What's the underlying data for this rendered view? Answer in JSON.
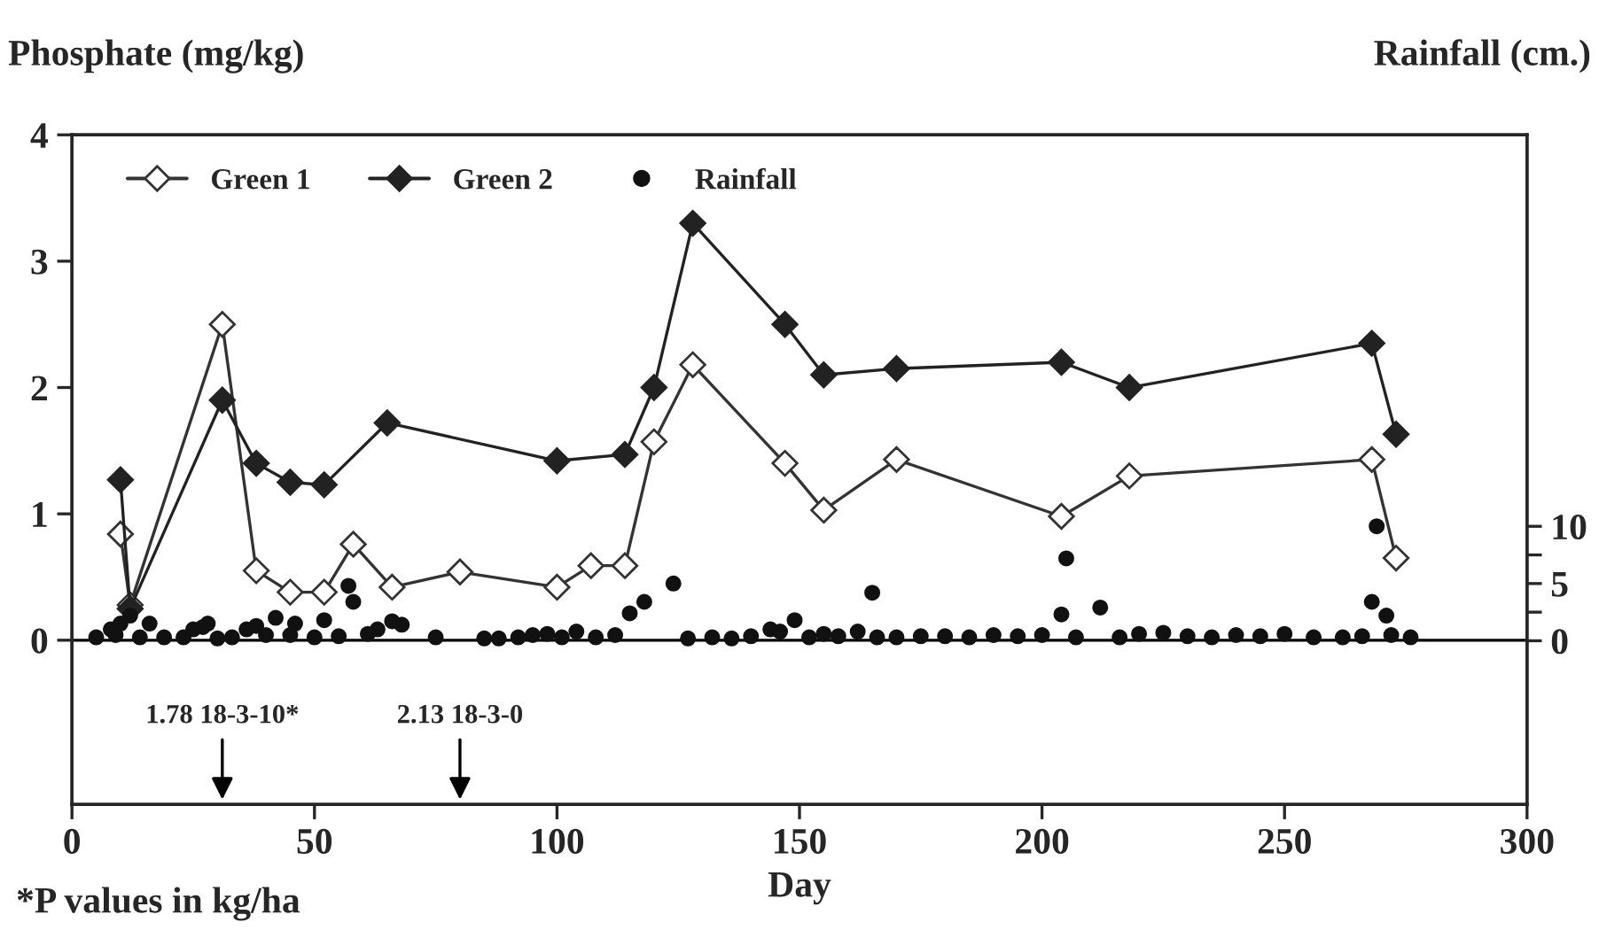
{
  "chart_data": {
    "type": "line",
    "xlabel": "Day",
    "ylabel": "Phosphate (mg/kg)",
    "y2label": "Rainfall (cm.)",
    "xlim": [
      0,
      300
    ],
    "xticks": [
      0,
      50,
      100,
      150,
      200,
      250,
      300
    ],
    "ylim": [
      -1.3,
      4
    ],
    "yticks": [
      0,
      1,
      2,
      3,
      4
    ],
    "y2lim": [
      -14.3,
      44.2
    ],
    "y2ticks": [
      0,
      {
        "value": 2.5,
        "label": null
      },
      5,
      {
        "value": 7.5,
        "label": null
      },
      10
    ],
    "grid": false,
    "legend": "top left",
    "line_style": "solid",
    "ref_lines": [
      {
        "axis": "y",
        "value": 0,
        "label": null,
        "color": "#000000"
      }
    ],
    "series": [
      {
        "name": "Green 1",
        "marker": "diamond",
        "color": "#333333",
        "x": [
          10,
          12,
          31,
          38,
          45,
          52,
          58,
          66,
          80,
          100,
          107,
          114,
          120,
          128,
          147,
          155,
          170,
          204,
          218,
          268,
          273
        ],
        "values": [
          0.84,
          0.28,
          2.5,
          0.55,
          0.38,
          0.38,
          0.76,
          0.42,
          0.54,
          0.42,
          0.59,
          0.59,
          1.57,
          2.18,
          1.4,
          1.03,
          1.43,
          0.98,
          1.3,
          1.43,
          0.65
        ]
      },
      {
        "name": "Green 2",
        "marker": "diamond",
        "color": "#222222",
        "x": [
          10,
          12,
          31,
          38,
          45,
          52,
          65,
          100,
          114,
          120,
          128,
          147,
          155,
          170,
          204,
          218,
          268,
          273
        ],
        "values": [
          1.27,
          0.25,
          1.9,
          1.4,
          1.25,
          1.23,
          1.72,
          1.42,
          1.47,
          2.0,
          3.3,
          2.5,
          2.1,
          2.15,
          2.2,
          2.0,
          2.35,
          1.63
        ]
      },
      {
        "name": "Rainfall",
        "type": "scatter",
        "axis": "y2",
        "marker": "circle",
        "color": "#111111",
        "x": [
          5,
          8,
          9,
          10,
          12,
          14,
          16,
          19,
          23,
          25,
          27,
          28,
          30,
          33,
          36,
          38,
          40,
          42,
          45,
          46,
          50,
          52,
          55,
          57,
          58,
          61,
          63,
          66,
          68,
          75,
          85,
          88,
          92,
          95,
          98,
          101,
          104,
          108,
          112,
          115,
          118,
          124,
          127,
          132,
          136,
          140,
          144,
          146,
          149,
          152,
          155,
          158,
          162,
          165,
          166,
          170,
          175,
          180,
          185,
          190,
          195,
          200,
          204,
          205,
          207,
          212,
          216,
          220,
          225,
          230,
          235,
          240,
          245,
          250,
          256,
          262,
          266,
          268,
          269,
          271,
          272,
          276
        ],
        "values": [
          0.3,
          1,
          0.5,
          1.5,
          2.2,
          0.3,
          1.5,
          0.3,
          0.3,
          1,
          1.2,
          1.5,
          0.2,
          0.3,
          1,
          1.3,
          0.5,
          2,
          0.5,
          1.5,
          0.3,
          1.8,
          0.4,
          4.8,
          3.4,
          0.6,
          1,
          1.7,
          1.4,
          0.3,
          0.2,
          0.2,
          0.3,
          0.5,
          0.6,
          0.3,
          0.8,
          0.3,
          0.5,
          2.4,
          3.4,
          5,
          0.2,
          0.3,
          0.2,
          0.4,
          1,
          0.8,
          1.8,
          0.3,
          0.6,
          0.4,
          0.8,
          4.2,
          0.3,
          0.3,
          0.4,
          0.4,
          0.3,
          0.5,
          0.4,
          0.5,
          2.3,
          7.2,
          0.3,
          2.9,
          0.3,
          0.6,
          0.7,
          0.4,
          0.3,
          0.5,
          0.4,
          0.6,
          0.3,
          0.3,
          0.4,
          3.4,
          10,
          2.2,
          0.5,
          0.3
        ]
      }
    ],
    "annotations": [
      {
        "text": "1.78 18-3-10*",
        "x": 31
      },
      {
        "text": "2.13 18-3-0",
        "x": 80
      },
      "*P values in kg/ha"
    ]
  }
}
